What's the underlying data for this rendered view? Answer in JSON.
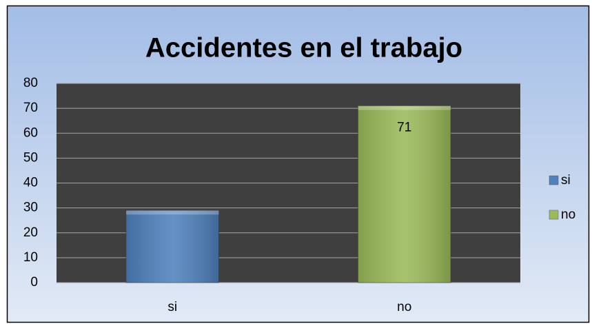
{
  "chart_data": {
    "type": "bar",
    "title": "Accidentes en el trabajo",
    "categories": [
      "si",
      "no"
    ],
    "series": [
      {
        "name": "si",
        "color": "#4f81bd",
        "values": [
          29,
          null
        ]
      },
      {
        "name": "no",
        "color": "#9bbb59",
        "values": [
          null,
          71
        ],
        "data_labels": true
      }
    ],
    "ylim": [
      0,
      80
    ],
    "yticks": [
      0,
      10,
      20,
      30,
      40,
      50,
      60,
      70,
      80
    ],
    "grid": true,
    "legend": "right"
  }
}
